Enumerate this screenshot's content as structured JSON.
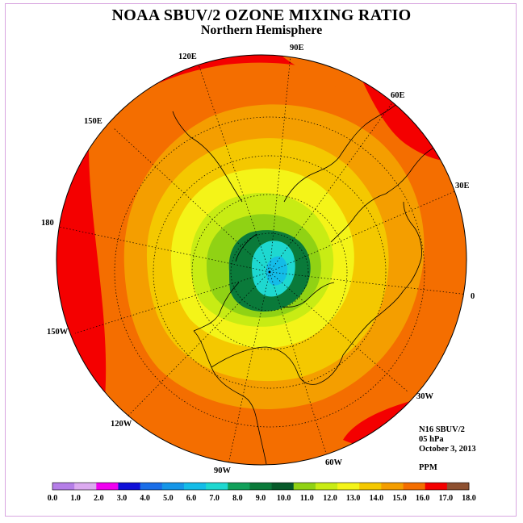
{
  "title": "NOAA SBUV/2 OZONE MIXING RATIO",
  "subtitle": "Northern Hemisphere",
  "longitude_labels": [
    "90E",
    "60E",
    "30E",
    "0",
    "30W",
    "60W",
    "90W",
    "120W",
    "150W",
    "180",
    "150E",
    "120E"
  ],
  "info": {
    "instrument": "N16 SBUV/2",
    "level": "05 hPa",
    "date": "October 3, 2013",
    "units": "PPM"
  },
  "colorbar": {
    "ticks": [
      "0.0",
      "1.0",
      "2.0",
      "3.0",
      "4.0",
      "5.0",
      "6.0",
      "7.0",
      "8.0",
      "9.0",
      "10.0",
      "11.0",
      "12.0",
      "13.0",
      "14.0",
      "15.0",
      "16.0",
      "17.0",
      "18.0"
    ],
    "colors": [
      "#b57ee8",
      "#dcaaf0",
      "#f000f0",
      "#1010d8",
      "#1a6ee8",
      "#1596e8",
      "#14bce8",
      "#1ed8d0",
      "#11a05a",
      "#0a7a3a",
      "#075a2a",
      "#90d214",
      "#c8ec14",
      "#f4f418",
      "#f4c800",
      "#f49e00",
      "#f46e00",
      "#f40000",
      "#8e5030"
    ]
  },
  "map_colors": {
    "ppm_9_10": "#0a7a3a",
    "ppm_10_11": "#90d214",
    "ppm_11_12": "#c8ec14",
    "ppm_12_13": "#f4f418",
    "ppm_13_14": "#f4c800",
    "ppm_14_15": "#f49e00",
    "ppm_15_16": "#f46e00",
    "ppm_16_17": "#f40000",
    "ppm_7_8": "#1ed8d0",
    "ppm_6_7": "#14bce8"
  }
}
